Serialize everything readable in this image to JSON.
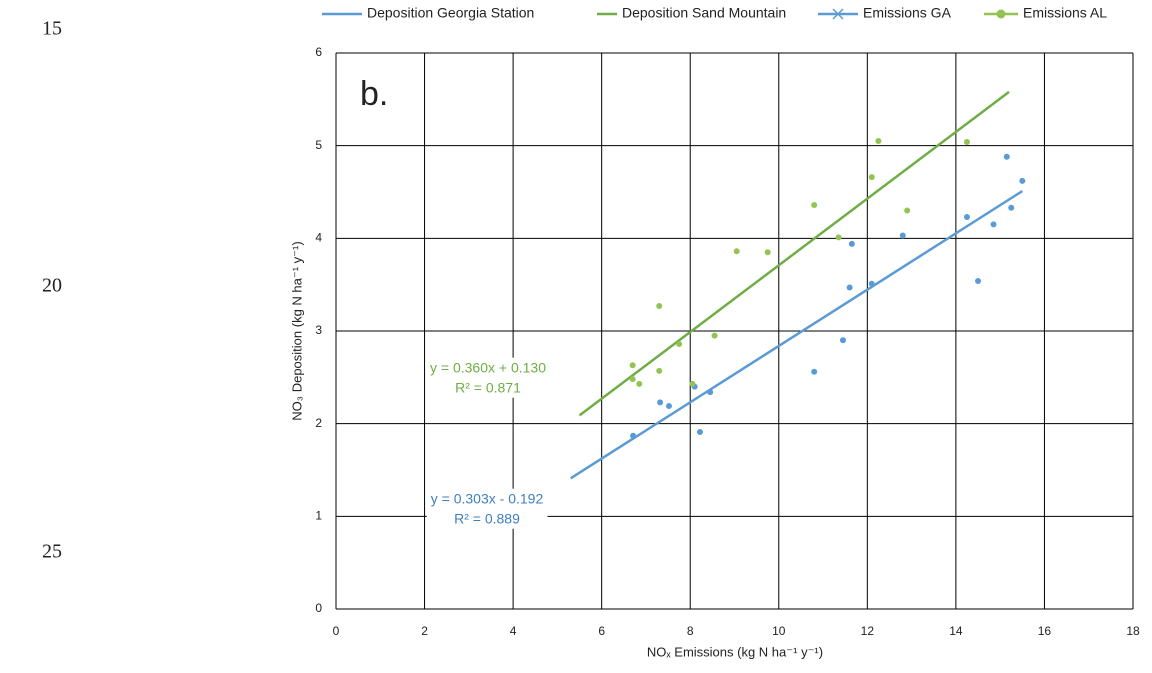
{
  "line_numbers": [
    15,
    20,
    25
  ],
  "chart_data": {
    "type": "scatter",
    "panel_label": "b.",
    "x_label": "NOₓ Emissions (kg N ha⁻¹ y⁻¹)",
    "y_label": "NO₃ Deposition (kg N ha⁻¹ y⁻¹)",
    "xlim": [
      0,
      18
    ],
    "xticks": [
      0,
      2,
      4,
      6,
      8,
      10,
      12,
      14,
      16,
      18
    ],
    "ylim": [
      0,
      6
    ],
    "yticks": [
      0,
      1,
      2,
      3,
      4,
      5,
      6
    ],
    "grid": true,
    "legend": "top",
    "series": [
      {
        "name": "Deposition Georgia Station",
        "color": "#5b9bd5",
        "kind": "line",
        "x": [
          5.3,
          15.5
        ],
        "values": [
          1.41,
          4.51
        ]
      },
      {
        "name": "Deposition Sand Mountain",
        "color": "#70ad47",
        "kind": "line",
        "x": [
          5.5,
          15.2
        ],
        "values": [
          2.09,
          5.58
        ]
      },
      {
        "name": "Emissions GA",
        "color": "#5b9bd5",
        "kind": "points",
        "legend_marker": "x",
        "x": [
          6.71,
          7.32,
          7.52,
          8.22,
          8.1,
          8.45,
          10.8,
          11.45,
          11.6,
          12.1,
          11.65,
          12.8,
          14.25,
          14.5,
          14.85,
          15.15,
          15.25,
          15.5
        ],
        "values": [
          1.87,
          2.23,
          2.19,
          1.91,
          2.4,
          2.34,
          2.56,
          2.9,
          3.47,
          3.51,
          3.94,
          4.03,
          4.23,
          3.54,
          4.15,
          4.88,
          4.33,
          4.62
        ]
      },
      {
        "name": "Emissions AL",
        "color": "#92c353",
        "kind": "points",
        "legend_marker": "circle",
        "x": [
          6.7,
          6.7,
          6.85,
          7.3,
          7.3,
          7.75,
          8.05,
          8.55,
          9.05,
          9.75,
          10.8,
          11.35,
          12.1,
          12.25,
          12.9,
          14.25
        ],
        "values": [
          2.63,
          2.48,
          2.43,
          3.27,
          2.57,
          2.86,
          2.43,
          2.95,
          3.86,
          3.85,
          4.36,
          4.01,
          4.66,
          5.05,
          4.3,
          5.04
        ]
      }
    ],
    "equations": [
      {
        "equation": "y = 0.360x + 0.130",
        "r2": "R² = 0.871",
        "color": "#70ad47"
      },
      {
        "equation": "y = 0.303x - 0.192",
        "r2": "R² = 0.889",
        "color": "#3f7fbf"
      }
    ]
  }
}
